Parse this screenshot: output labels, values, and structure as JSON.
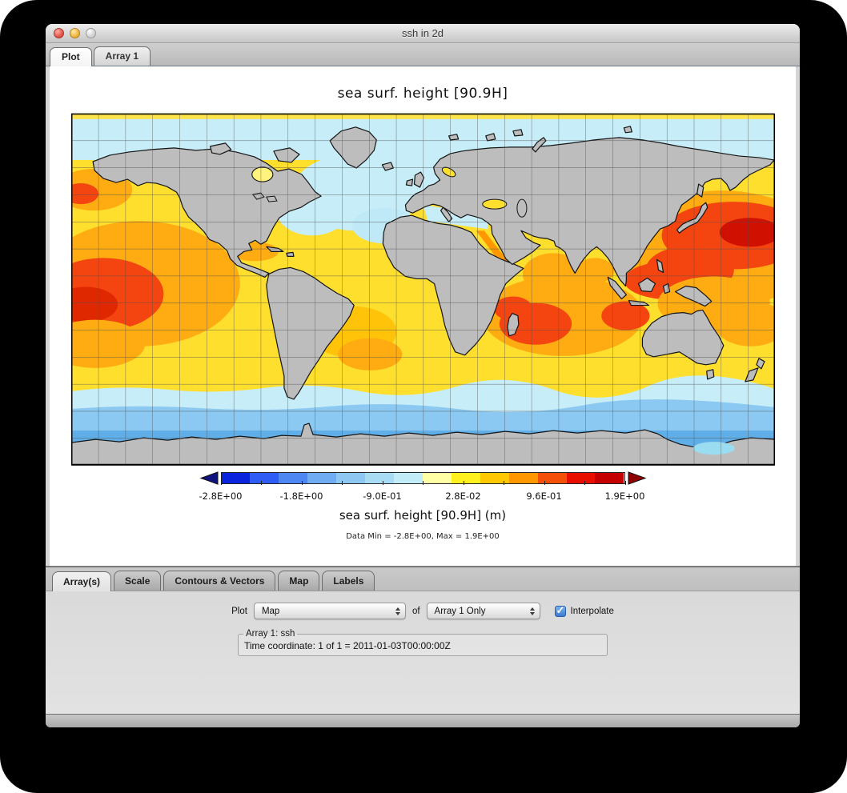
{
  "window": {
    "title": "ssh in 2d"
  },
  "top_tabs": [
    {
      "label": "Plot",
      "selected": true
    },
    {
      "label": "Array 1",
      "selected": false
    }
  ],
  "plot": {
    "title": "sea surf. height  [90.9H]",
    "colorbar": {
      "segment_colors": [
        "#0A23DC",
        "#2E5CF5",
        "#4E86F2",
        "#6FACF2",
        "#8EC8F2",
        "#A8DCF5",
        "#C2ECF8",
        "#FFFFA5",
        "#FFF01E",
        "#FFC805",
        "#FF9800",
        "#F4500A",
        "#E80F00",
        "#C40000"
      ],
      "left_arrow_color": "#10147E",
      "right_arrow_color": "#8F0000",
      "tick_labels": [
        "-2.8E+00",
        "-1.8E+00",
        "-9.0E-01",
        "2.8E-02",
        "9.6E-01",
        "1.9E+00"
      ],
      "axis_label": "sea surf. height  [90.9H] (m)",
      "range_note": "Data Min = -2.8E+00, Max = 1.9E+00"
    },
    "map": {
      "land_color": "#BDBDBD",
      "coast_color": "#141414",
      "grid_color": "#4F4F4F"
    }
  },
  "bottom_tabs": [
    {
      "label": "Array(s)",
      "selected": true
    },
    {
      "label": "Scale",
      "selected": false
    },
    {
      "label": "Contours & Vectors",
      "selected": false
    },
    {
      "label": "Map",
      "selected": false
    },
    {
      "label": "Labels",
      "selected": false
    }
  ],
  "controls": {
    "plot_label": "Plot",
    "plot_type_value": "Map",
    "of_label": "of",
    "array_select_value": "Array 1 Only",
    "interpolate_label": "Interpolate",
    "interpolate_checked": true
  },
  "array_group": {
    "legend": "Array 1: ssh",
    "time_coordinate": "Time coordinate: 1 of 1 = 2011-01-03T00:00:00Z"
  },
  "chart_data": {
    "type": "heatmap",
    "title": "sea surf. height  [90.9H]",
    "colorbar_label": "sea surf. height  [90.9H] (m)",
    "colorbar_ticks": [
      "-2.8E+00",
      "-1.8E+00",
      "-9.0E-01",
      "2.8E-02",
      "9.6E-01",
      "1.9E+00"
    ],
    "value_range": [
      -2.8,
      1.9
    ],
    "units": "m",
    "data_min": "-2.8E+00",
    "data_max": "1.9E+00",
    "projection": "global equirectangular world map; gray continents; 14-step blue-to-red ocean palette; graticule grid"
  }
}
